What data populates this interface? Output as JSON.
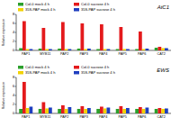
{
  "chart_data": [
    {
      "type": "bar",
      "title": "AtC1",
      "y_label": "Relative expression",
      "categories": [
        "PAP1",
        "MYB11",
        "PAP2",
        "PAP3",
        "PAP4",
        "PAP5",
        "PAP6",
        "CAT2"
      ],
      "series": [
        {
          "name": "Col-0 mock 4 h",
          "color": "#2ca02c",
          "values": [
            0.5,
            0.4,
            0.4,
            0.4,
            0.3,
            0.3,
            0.3,
            0.6
          ]
        },
        {
          "name": "Col-0 sucrose 4 h",
          "color": "#e41a1c",
          "values": [
            6.5,
            5.0,
            6.3,
            6.0,
            5.8,
            5.2,
            4.2,
            0.8
          ]
        },
        {
          "name": "35S-PAP mock 4 h",
          "color": "#f2d200",
          "values": [
            0.3,
            0.3,
            0.3,
            0.3,
            0.3,
            0.3,
            0.3,
            0.5
          ]
        },
        {
          "name": "35S-PAP sucrose 4 h",
          "color": "#1f3fbf",
          "values": [
            0.3,
            0.3,
            0.3,
            0.4,
            0.3,
            0.3,
            0.4,
            0.5
          ]
        }
      ],
      "ylim": [
        0,
        8
      ],
      "yticks": [
        0,
        2,
        4,
        6,
        8
      ],
      "legend": "top-left",
      "grid": false
    },
    {
      "type": "bar",
      "title": "EWS",
      "y_label": "Relative expression",
      "categories": [
        "PAP1",
        "MYB11",
        "PAP2",
        "PAP3",
        "PAP4",
        "PAP5",
        "PAP6",
        "CAT2"
      ],
      "series": [
        {
          "name": "Col-0 mock 4 h",
          "color": "#2ca02c",
          "values": [
            1.0,
            1.0,
            1.0,
            1.0,
            1.0,
            1.0,
            1.0,
            1.0
          ]
        },
        {
          "name": "Col-0 sucrose 4 h",
          "color": "#e41a1c",
          "values": [
            7.0,
            2.5,
            1.8,
            1.6,
            1.5,
            1.6,
            1.4,
            1.2
          ]
        },
        {
          "name": "35S-PAP mock 4 h",
          "color": "#f2d200",
          "values": [
            1.2,
            1.1,
            1.0,
            1.0,
            1.1,
            1.0,
            1.0,
            1.0
          ]
        },
        {
          "name": "35S-PAP sucrose 4 h",
          "color": "#1f3fbf",
          "values": [
            1.5,
            1.3,
            1.4,
            1.2,
            1.3,
            1.2,
            1.3,
            1.1
          ]
        }
      ],
      "ylim": [
        0,
        8
      ],
      "yticks": [
        0,
        2,
        4,
        6,
        8
      ],
      "legend": "top-left",
      "grid": false
    }
  ]
}
